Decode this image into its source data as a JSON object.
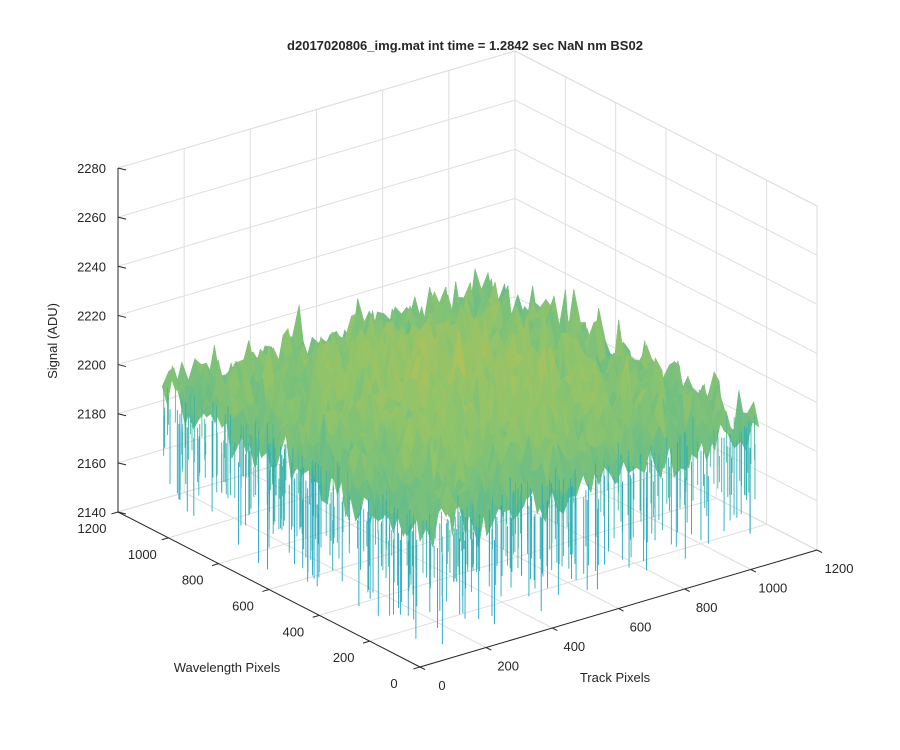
{
  "chart_data": {
    "type": "surface",
    "title": "d2017020806_img.mat int time = 1.2842 sec  NaN nm BS02",
    "xlabel": "Track Pixels",
    "ylabel": "Wavelength Pixels",
    "zlabel": "Signal (ADU)",
    "xlim": [
      0,
      1200
    ],
    "ylim": [
      0,
      1200
    ],
    "zlim": [
      2140,
      2280
    ],
    "xticks": [
      "0",
      "200",
      "400",
      "600",
      "800",
      "1000",
      "1200"
    ],
    "yticks": [
      "0",
      "200",
      "400",
      "600",
      "800",
      "1000",
      "1200"
    ],
    "zticks": [
      "2140",
      "2160",
      "2180",
      "2200",
      "2220",
      "2240",
      "2260",
      "2280"
    ],
    "grid": true,
    "surface_extent": {
      "x": [
        0,
        1024
      ],
      "y": [
        0,
        1024
      ]
    },
    "signal_mean": 2205,
    "signal_min_approx": 2150,
    "signal_max_approx": 2265,
    "colormap": [
      "#1aa2c9",
      "#3eb6a8",
      "#8ec46c",
      "#d9be45",
      "#f4c430"
    ]
  }
}
